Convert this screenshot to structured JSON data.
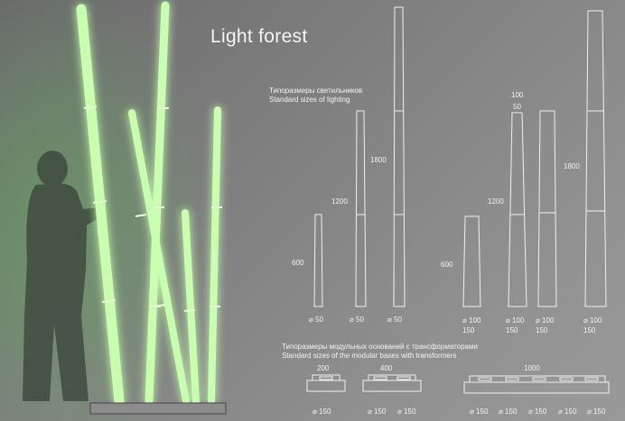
{
  "title": "Light forest",
  "lighting_header": {
    "ru": "Типоразмеры светильников",
    "en": "Standard sizes of lighting"
  },
  "lighting_sizes": {
    "heights": [
      "600",
      "1200",
      "1800"
    ],
    "set_a_diameter": "⌀ 50",
    "set_b_heights": [
      "600",
      "1200",
      "1800"
    ],
    "set_b_diameters": [
      "⌀ 100\n150",
      "⌀ 100\n150",
      "⌀ 100\n150",
      "⌀ 100\n150"
    ],
    "set_b_top_note": [
      "100",
      "50"
    ]
  },
  "bases_header": {
    "ru": "Типоразмеры модульных оснований с трансформаторами",
    "en": "Standard sizes of the modular bases with transformers"
  },
  "bases": {
    "widths": [
      "200",
      "400",
      "1000"
    ],
    "diameter": "⌀ 150"
  },
  "colors": {
    "background": "#7d7d7d",
    "glow": "#a8ff8c",
    "line": "#f0f0f0"
  }
}
